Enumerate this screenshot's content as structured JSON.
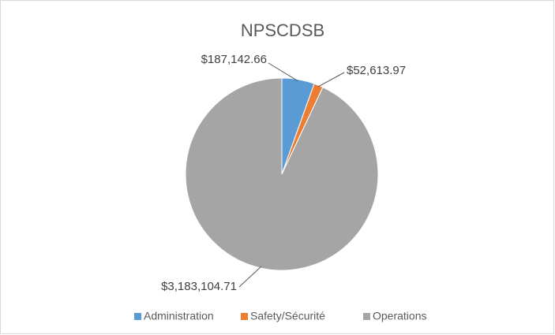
{
  "chart_data": {
    "type": "pie",
    "title": "NPSCDSB",
    "categories": [
      "Administration",
      "Safety/Sécurité",
      "Operations"
    ],
    "values": [
      187142.66,
      52613.97,
      3183104.71
    ],
    "value_labels": [
      "$187,142.66",
      "$52,613.97",
      "$3,183,104.71"
    ],
    "colors": [
      "#5b9bd5",
      "#ed7d31",
      "#a5a5a5"
    ],
    "legend": "bottom"
  }
}
